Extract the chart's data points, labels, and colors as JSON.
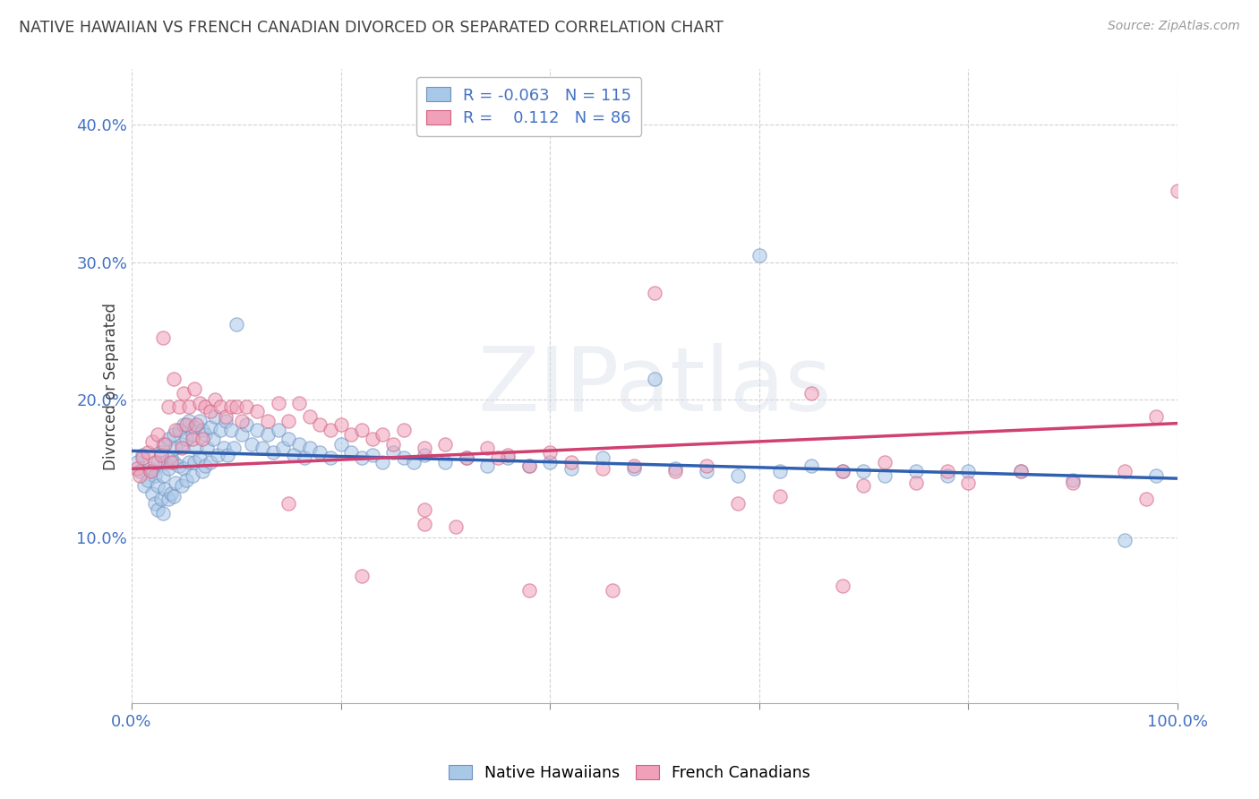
{
  "title": "NATIVE HAWAIIAN VS FRENCH CANADIAN DIVORCED OR SEPARATED CORRELATION CHART",
  "source": "Source: ZipAtlas.com",
  "ylabel": "Divorced or Separated",
  "watermark": "ZIPatlas",
  "legend_blue_r": "-0.063",
  "legend_blue_n": "115",
  "legend_pink_r": "0.112",
  "legend_pink_n": "86",
  "blue_color": "#a8c8e8",
  "pink_color": "#f0a0b8",
  "blue_edge_color": "#7090c0",
  "pink_edge_color": "#d06080",
  "blue_line_color": "#3060b0",
  "pink_line_color": "#d04070",
  "axis_label_color": "#4472c4",
  "title_color": "#404040",
  "xlim": [
    0,
    1.0
  ],
  "ylim": [
    -0.02,
    0.44
  ],
  "xticks": [
    0.0,
    0.2,
    0.4,
    0.6,
    0.8,
    1.0
  ],
  "xticklabels": [
    "0.0%",
    "",
    "",
    "",
    "",
    "100.0%"
  ],
  "yticks": [
    0.1,
    0.2,
    0.3,
    0.4
  ],
  "yticklabels": [
    "10.0%",
    "20.0%",
    "30.0%",
    "40.0%"
  ],
  "blue_scatter_x": [
    0.005,
    0.008,
    0.01,
    0.012,
    0.015,
    0.018,
    0.02,
    0.02,
    0.022,
    0.022,
    0.025,
    0.025,
    0.025,
    0.028,
    0.028,
    0.03,
    0.03,
    0.03,
    0.032,
    0.032,
    0.035,
    0.035,
    0.035,
    0.038,
    0.038,
    0.04,
    0.04,
    0.04,
    0.042,
    0.042,
    0.045,
    0.045,
    0.048,
    0.048,
    0.05,
    0.05,
    0.052,
    0.052,
    0.055,
    0.055,
    0.058,
    0.058,
    0.06,
    0.06,
    0.062,
    0.065,
    0.065,
    0.068,
    0.068,
    0.07,
    0.07,
    0.072,
    0.075,
    0.075,
    0.078,
    0.08,
    0.082,
    0.085,
    0.088,
    0.09,
    0.092,
    0.095,
    0.098,
    0.1,
    0.105,
    0.11,
    0.115,
    0.12,
    0.125,
    0.13,
    0.135,
    0.14,
    0.145,
    0.15,
    0.155,
    0.16,
    0.165,
    0.17,
    0.18,
    0.19,
    0.2,
    0.21,
    0.22,
    0.23,
    0.24,
    0.25,
    0.26,
    0.27,
    0.28,
    0.3,
    0.32,
    0.34,
    0.36,
    0.38,
    0.4,
    0.42,
    0.45,
    0.48,
    0.5,
    0.52,
    0.55,
    0.58,
    0.6,
    0.62,
    0.65,
    0.68,
    0.7,
    0.72,
    0.75,
    0.78,
    0.8,
    0.85,
    0.9,
    0.95,
    0.98
  ],
  "blue_scatter_y": [
    0.155,
    0.148,
    0.16,
    0.138,
    0.142,
    0.15,
    0.148,
    0.132,
    0.145,
    0.125,
    0.155,
    0.138,
    0.12,
    0.162,
    0.128,
    0.168,
    0.145,
    0.118,
    0.155,
    0.135,
    0.172,
    0.15,
    0.128,
    0.158,
    0.132,
    0.175,
    0.155,
    0.13,
    0.165,
    0.14,
    0.178,
    0.152,
    0.168,
    0.138,
    0.182,
    0.15,
    0.172,
    0.142,
    0.185,
    0.155,
    0.175,
    0.145,
    0.18,
    0.155,
    0.165,
    0.185,
    0.158,
    0.178,
    0.148,
    0.175,
    0.152,
    0.165,
    0.18,
    0.155,
    0.172,
    0.188,
    0.16,
    0.178,
    0.165,
    0.185,
    0.16,
    0.178,
    0.165,
    0.255,
    0.175,
    0.182,
    0.168,
    0.178,
    0.165,
    0.175,
    0.162,
    0.178,
    0.165,
    0.172,
    0.16,
    0.168,
    0.158,
    0.165,
    0.162,
    0.158,
    0.168,
    0.162,
    0.158,
    0.16,
    0.155,
    0.162,
    0.158,
    0.155,
    0.16,
    0.155,
    0.158,
    0.152,
    0.158,
    0.152,
    0.155,
    0.15,
    0.158,
    0.15,
    0.215,
    0.15,
    0.148,
    0.145,
    0.305,
    0.148,
    0.152,
    0.148,
    0.148,
    0.145,
    0.148,
    0.145,
    0.148,
    0.148,
    0.142,
    0.098,
    0.145
  ],
  "pink_scatter_x": [
    0.005,
    0.008,
    0.01,
    0.015,
    0.018,
    0.02,
    0.022,
    0.025,
    0.028,
    0.03,
    0.032,
    0.035,
    0.038,
    0.04,
    0.042,
    0.045,
    0.048,
    0.05,
    0.052,
    0.055,
    0.058,
    0.06,
    0.062,
    0.065,
    0.068,
    0.07,
    0.075,
    0.08,
    0.085,
    0.09,
    0.095,
    0.1,
    0.105,
    0.11,
    0.12,
    0.13,
    0.14,
    0.15,
    0.16,
    0.17,
    0.18,
    0.19,
    0.2,
    0.21,
    0.22,
    0.23,
    0.24,
    0.25,
    0.26,
    0.28,
    0.3,
    0.32,
    0.34,
    0.36,
    0.38,
    0.4,
    0.42,
    0.45,
    0.48,
    0.5,
    0.52,
    0.55,
    0.58,
    0.62,
    0.65,
    0.68,
    0.7,
    0.72,
    0.75,
    0.78,
    0.8,
    0.85,
    0.9,
    0.95,
    0.97,
    0.98,
    1.0,
    0.35,
    0.28,
    0.15,
    0.22,
    0.31,
    0.28,
    0.38,
    0.46,
    0.68
  ],
  "pink_scatter_y": [
    0.15,
    0.145,
    0.158,
    0.162,
    0.148,
    0.17,
    0.155,
    0.175,
    0.16,
    0.245,
    0.168,
    0.195,
    0.155,
    0.215,
    0.178,
    0.195,
    0.165,
    0.205,
    0.182,
    0.195,
    0.172,
    0.208,
    0.182,
    0.198,
    0.172,
    0.195,
    0.192,
    0.2,
    0.195,
    0.188,
    0.195,
    0.195,
    0.185,
    0.195,
    0.192,
    0.185,
    0.198,
    0.185,
    0.198,
    0.188,
    0.182,
    0.178,
    0.182,
    0.175,
    0.178,
    0.172,
    0.175,
    0.168,
    0.178,
    0.165,
    0.168,
    0.158,
    0.165,
    0.16,
    0.152,
    0.162,
    0.155,
    0.15,
    0.152,
    0.278,
    0.148,
    0.152,
    0.125,
    0.13,
    0.205,
    0.148,
    0.138,
    0.155,
    0.14,
    0.148,
    0.14,
    0.148,
    0.14,
    0.148,
    0.128,
    0.188,
    0.352,
    0.158,
    0.12,
    0.125,
    0.072,
    0.108,
    0.11,
    0.062,
    0.062,
    0.065
  ],
  "blue_trend_x": [
    0.0,
    1.0
  ],
  "blue_trend_y_start": 0.163,
  "blue_trend_y_end": 0.143,
  "pink_trend_x": [
    0.0,
    1.0
  ],
  "pink_trend_y_start": 0.15,
  "pink_trend_y_end": 0.183,
  "bg_color": "#ffffff",
  "grid_color": "#cccccc",
  "scatter_size": 120,
  "scatter_alpha": 0.55,
  "scatter_lw": 1.0
}
